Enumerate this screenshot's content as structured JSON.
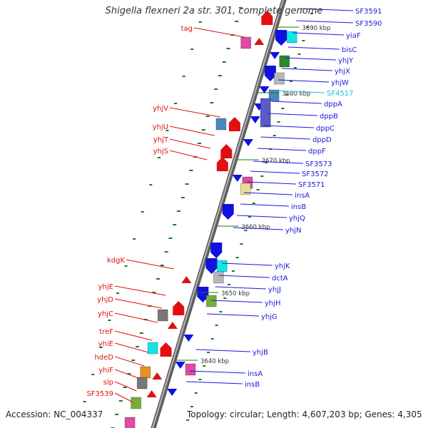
{
  "title": "Shigella flexneri 2a str. 301, complete genome",
  "accession": "Accession: NC_004337",
  "topology": "Topology: circular; Length: 4,607,203 bp; Genes: 4,305",
  "colors": {
    "backbone": "#8a8a8a",
    "tick": "#1a7a1a",
    "right_label": "#1a1adb",
    "left_label": "#e01010",
    "special_label": "#22bcd8"
  },
  "kbp_ticks": [
    "3690 kbp",
    "3680 kbp",
    "3670 kbp",
    "3660 kbp",
    "3650 kbp",
    "3640 kbp"
  ],
  "right_genes": [
    "SF3591",
    "SF3590",
    "yiaF",
    "bisC",
    "yhjY",
    "yhjX",
    "yhjW",
    "SF4517",
    "dppA",
    "dppB",
    "dppC",
    "dppD",
    "dppF",
    "SF3573",
    "SF3572",
    "SF3571",
    "insA",
    "insB",
    "yhjQ",
    "yhjN",
    "yhjK",
    "dctA",
    "yhjJ",
    "yhjH",
    "yhjG",
    "yhjB",
    "insA",
    "insB"
  ],
  "left_genes": [
    "tag",
    "yhjV",
    "yhjU",
    "yhjT",
    "yhjS",
    "kdgK",
    "yhjE",
    "yhjD",
    "yhjC",
    "treF",
    "yhiE",
    "hdeD",
    "yhiF",
    "slp",
    "SF3539"
  ]
}
